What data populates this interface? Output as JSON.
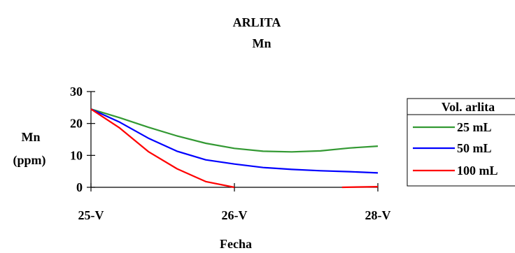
{
  "chart_data": {
    "type": "line",
    "title": "ARLITA",
    "subtitle": "Mn",
    "ylabel": [
      "Mn",
      "(ppm)"
    ],
    "xlabel": "Fecha",
    "x": [
      0,
      0.5,
      1,
      1.5,
      2
    ],
    "x_tick_labels": [
      "25-V",
      "26-V",
      "28-V"
    ],
    "x_tick_positions": [
      0,
      1,
      2
    ],
    "ylim": [
      0,
      30
    ],
    "y_ticks": [
      0,
      10,
      20,
      30
    ],
    "legend_title": "Vol. arlita",
    "legend_placement": "right",
    "series": [
      {
        "name": "25 mL",
        "color": "#339933",
        "points": [
          [
            0,
            24.5
          ],
          [
            0.2,
            21.8
          ],
          [
            0.4,
            18.8
          ],
          [
            0.6,
            16.1
          ],
          [
            0.8,
            13.8
          ],
          [
            1,
            12.2
          ],
          [
            1.2,
            11.3
          ],
          [
            1.4,
            11.1
          ],
          [
            1.6,
            11.4
          ],
          [
            1.8,
            12.3
          ],
          [
            2,
            12.9
          ]
        ]
      },
      {
        "name": "50 mL",
        "color": "#0000ff",
        "points": [
          [
            0,
            24.5
          ],
          [
            0.2,
            20.4
          ],
          [
            0.4,
            15.4
          ],
          [
            0.6,
            11.3
          ],
          [
            0.8,
            8.6
          ],
          [
            1,
            7.3
          ],
          [
            1.2,
            6.2
          ],
          [
            1.4,
            5.6
          ],
          [
            1.6,
            5.2
          ],
          [
            1.8,
            4.9
          ],
          [
            2,
            4.5
          ]
        ]
      },
      {
        "name": "100 mL",
        "color": "#ff0000",
        "points": [
          [
            0,
            24.5
          ],
          [
            0.2,
            18.6
          ],
          [
            0.4,
            11.2
          ],
          [
            0.6,
            5.8
          ],
          [
            0.8,
            1.8
          ],
          [
            1,
            0
          ]
        ],
        "points_tail": [
          [
            1.75,
            0
          ],
          [
            2,
            0.2
          ]
        ]
      }
    ]
  }
}
